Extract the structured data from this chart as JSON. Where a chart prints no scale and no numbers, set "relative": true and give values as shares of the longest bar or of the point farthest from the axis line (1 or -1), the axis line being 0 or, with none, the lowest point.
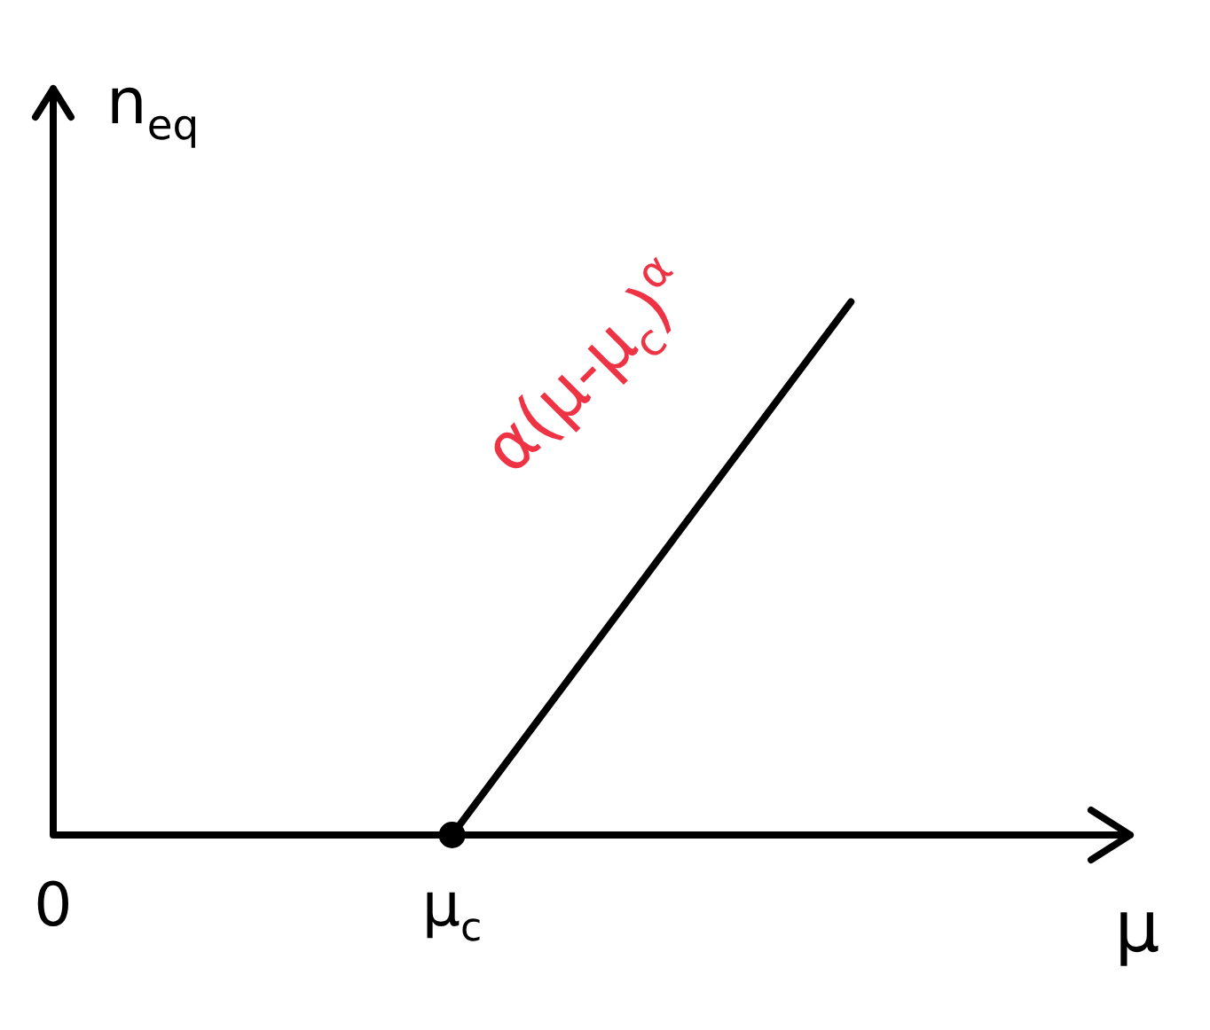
{
  "chart_data": {
    "type": "line",
    "relative": true,
    "xlabel": "μ",
    "ylabel": "n$_{eq}$",
    "categories": [
      "0",
      null,
      "μ$_{c}$",
      null,
      null
    ],
    "series": [
      {
        "type": "line",
        "color": "#000000",
        "values": [
          0,
          0,
          0,
          0.5,
          1
        ]
      },
      {
        "type": "scatter",
        "color": "#000000",
        "values": [
          null,
          null,
          0,
          null,
          null
        ]
      }
    ],
    "annotations": [
      "α(μ-μ$_{c}$)$^{α}$"
    ],
    "legend": false
  }
}
